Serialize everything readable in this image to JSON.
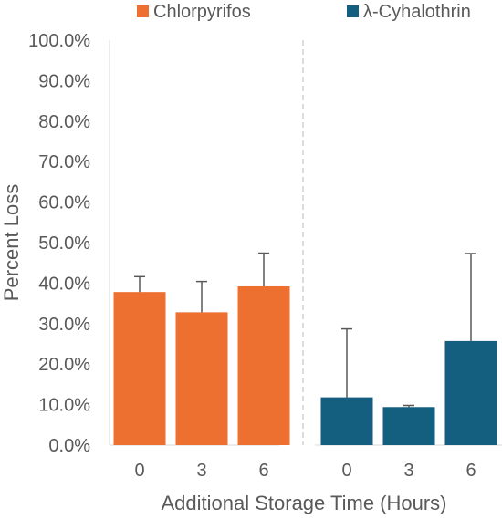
{
  "chart_data": {
    "type": "bar",
    "xlabel": "Additional Storage Time (Hours)",
    "ylabel": "Percent Loss",
    "ylim": [
      0,
      100
    ],
    "yticks": [
      "0.0%",
      "10.0%",
      "20.0%",
      "30.0%",
      "40.0%",
      "50.0%",
      "60.0%",
      "70.0%",
      "80.0%",
      "90.0%",
      "100.0%"
    ],
    "legend_position": "top",
    "grid": false,
    "panels": [
      {
        "name": "Chlorpyrifos",
        "color": "#ED7031",
        "categories": [
          "0",
          "3",
          "6"
        ],
        "values": [
          37.8,
          32.8,
          39.2
        ],
        "error_upper": [
          3.8,
          7.6,
          8.2
        ]
      },
      {
        "name": "λ-Cyhalothrin",
        "color": "#145E80",
        "categories": [
          "0",
          "3",
          "6"
        ],
        "values": [
          11.8,
          9.4,
          25.7
        ],
        "error_upper": [
          16.9,
          0.4,
          21.6
        ]
      }
    ]
  }
}
